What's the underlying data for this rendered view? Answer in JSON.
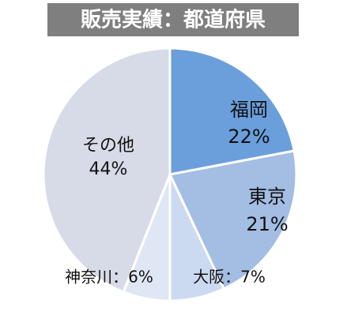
{
  "chart_data": {
    "type": "pie",
    "title": "販売実績：都道府県",
    "values": [
      22,
      21,
      7,
      6,
      44
    ],
    "labels": [
      [
        "福岡",
        "22%"
      ],
      [
        "東京",
        "21%"
      ],
      [
        "大阪：7%"
      ],
      [
        "神奈川：6%"
      ],
      [
        "その他",
        "44%"
      ]
    ],
    "colors": [
      "#6a9fdc",
      "#a3bde3",
      "#cbdaf1",
      "#dfe7f4",
      "#d7dbe8"
    ]
  }
}
